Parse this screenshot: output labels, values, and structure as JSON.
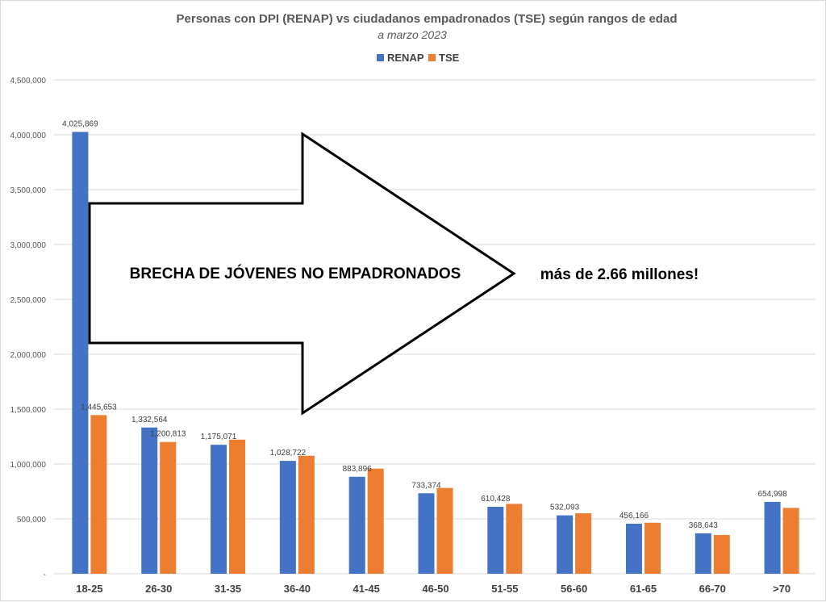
{
  "chart_data": {
    "type": "bar",
    "title": "Personas con DPI (RENAP) vs ciudadanos empadronados (TSE) según rangos de edad",
    "subtitle": "a marzo 2023",
    "categories": [
      "18-25",
      "26-30",
      "31-35",
      "36-40",
      "41-45",
      "46-50",
      "51-55",
      "56-60",
      "61-65",
      "66-70",
      ">70"
    ],
    "series": [
      {
        "name": "RENAP",
        "color": "#4472c4",
        "values": [
          4025869,
          1332564,
          1175071,
          1028722,
          883896,
          733374,
          610428,
          532093,
          456166,
          368643,
          654998
        ],
        "labels": [
          "4,025,869",
          "1,332,564",
          "1,175,071",
          "1,028,722",
          "883,896",
          "733,374",
          "610,428",
          "532,093",
          "456,166",
          "368,643",
          "654,998"
        ]
      },
      {
        "name": "TSE",
        "color": "#ed7d31",
        "values": [
          1445653,
          1200813,
          1222000,
          1075000,
          958000,
          782000,
          637000,
          551000,
          465000,
          353000,
          600000
        ],
        "labels": [
          "1,445,653",
          "1,200,813",
          "",
          "",
          "",
          "",
          "",
          "",
          "",
          "",
          ""
        ]
      }
    ],
    "ylim": [
      0,
      4500000
    ],
    "yticks": [
      0,
      500000,
      1000000,
      1500000,
      2000000,
      2500000,
      3000000,
      3500000,
      4000000,
      4500000
    ],
    "ytick_labels": [
      "-",
      "500,000",
      "1,000,000",
      "1,500,000",
      "2,000,000",
      "2,500,000",
      "3,000,000",
      "3,500,000",
      "4,000,000",
      "4,500,000"
    ],
    "grid": true,
    "legend_position": "top-center"
  },
  "annotations": {
    "arrow_text": "BRECHA DE JÓVENES NO EMPADRONADOS",
    "side_text": "más de 2.66 millones!"
  }
}
